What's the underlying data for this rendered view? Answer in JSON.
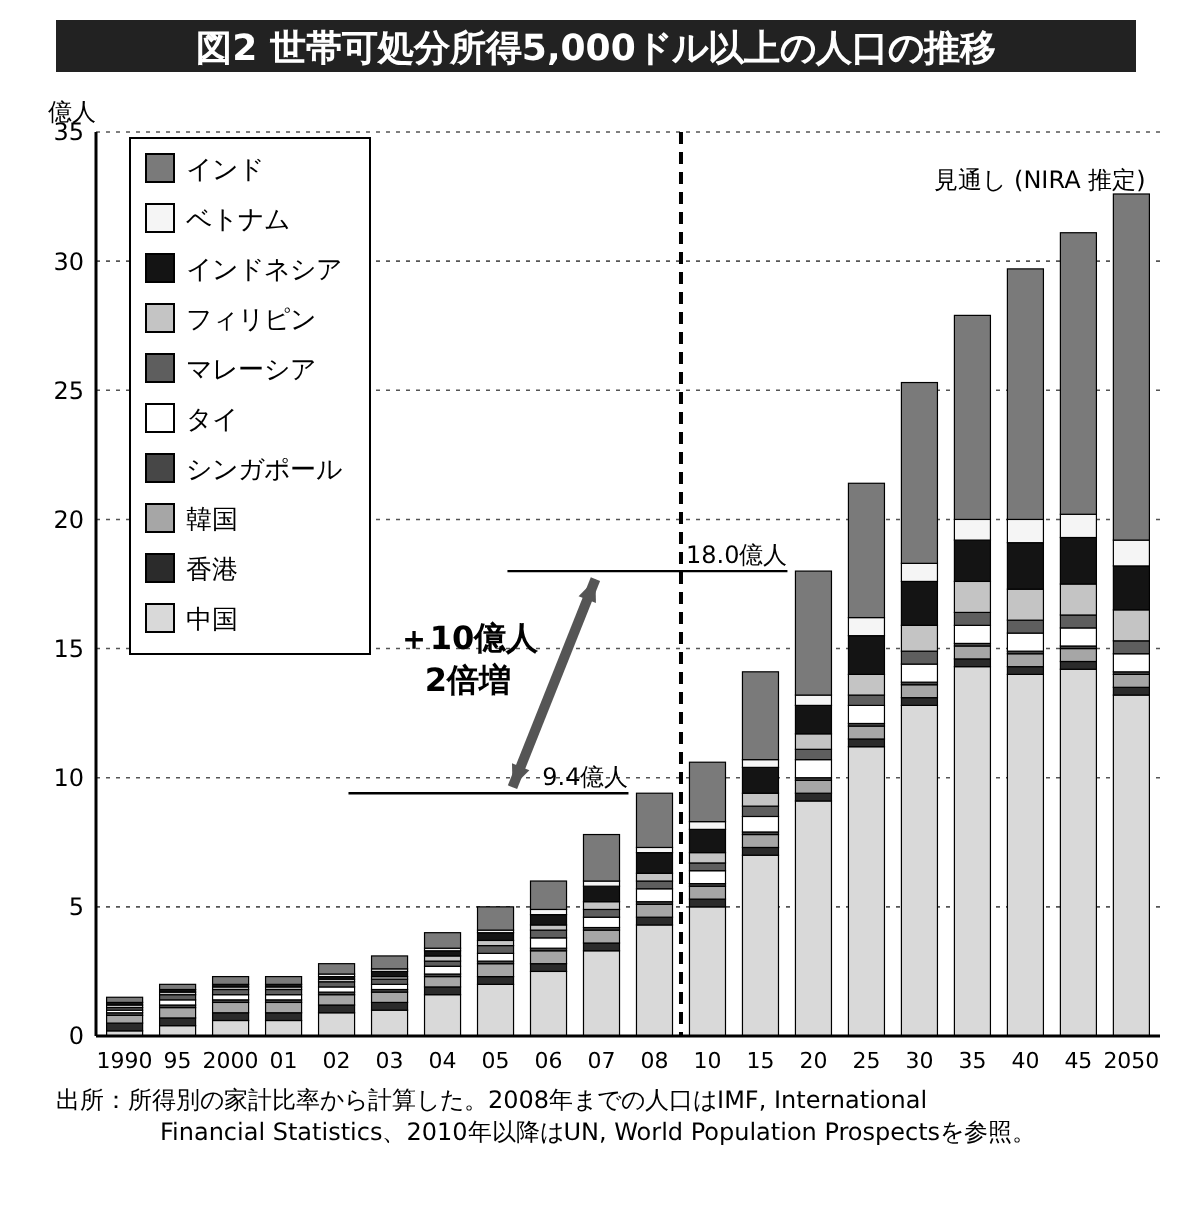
{
  "chart_data": {
    "type": "bar",
    "stacked": true,
    "title": "図2 世帯可処分所得5,000ドル以上の人口の推移",
    "ylabel": "億人",
    "categories": [
      "1990",
      "95",
      "2000",
      "01",
      "02",
      "03",
      "04",
      "05",
      "06",
      "07",
      "08",
      "10",
      "15",
      "20",
      "25",
      "30",
      "35",
      "40",
      "45",
      "2050"
    ],
    "series": [
      {
        "name": "中国",
        "color": "#d9d9d9",
        "values": [
          0.2,
          0.4,
          0.6,
          0.6,
          0.9,
          1.0,
          1.6,
          2.0,
          2.5,
          3.3,
          4.3,
          5.0,
          7.0,
          9.1,
          11.2,
          12.8,
          14.3,
          14.0,
          14.2,
          13.2
        ]
      },
      {
        "name": "香港",
        "color": "#2b2b2b",
        "values": [
          0.3,
          0.3,
          0.3,
          0.3,
          0.3,
          0.3,
          0.3,
          0.3,
          0.3,
          0.3,
          0.3,
          0.3,
          0.3,
          0.3,
          0.3,
          0.3,
          0.3,
          0.3,
          0.3,
          0.3
        ]
      },
      {
        "name": "韓国",
        "color": "#a6a6a6",
        "values": [
          0.3,
          0.4,
          0.4,
          0.4,
          0.4,
          0.4,
          0.4,
          0.5,
          0.5,
          0.5,
          0.5,
          0.5,
          0.5,
          0.5,
          0.5,
          0.5,
          0.5,
          0.5,
          0.5,
          0.5
        ]
      },
      {
        "name": "シンガポール",
        "color": "#474747",
        "values": [
          0.1,
          0.1,
          0.1,
          0.1,
          0.1,
          0.1,
          0.1,
          0.1,
          0.1,
          0.1,
          0.1,
          0.1,
          0.1,
          0.1,
          0.1,
          0.1,
          0.1,
          0.1,
          0.1,
          0.1
        ]
      },
      {
        "name": "タイ",
        "color": "#ffffff",
        "values": [
          0.1,
          0.2,
          0.2,
          0.2,
          0.2,
          0.2,
          0.3,
          0.3,
          0.4,
          0.4,
          0.5,
          0.5,
          0.6,
          0.7,
          0.7,
          0.7,
          0.7,
          0.7,
          0.7,
          0.7
        ]
      },
      {
        "name": "マレーシア",
        "color": "#5e5e5e",
        "values": [
          0.1,
          0.2,
          0.2,
          0.2,
          0.2,
          0.2,
          0.2,
          0.3,
          0.3,
          0.3,
          0.3,
          0.3,
          0.4,
          0.4,
          0.4,
          0.5,
          0.5,
          0.5,
          0.5,
          0.5
        ]
      },
      {
        "name": "フィリピン",
        "color": "#c4c4c4",
        "values": [
          0.1,
          0.1,
          0.1,
          0.1,
          0.1,
          0.1,
          0.2,
          0.2,
          0.2,
          0.3,
          0.3,
          0.4,
          0.5,
          0.6,
          0.8,
          1.0,
          1.2,
          1.2,
          1.2,
          1.2
        ]
      },
      {
        "name": "インドネシア",
        "color": "#141414",
        "values": [
          0.1,
          0.1,
          0.1,
          0.1,
          0.1,
          0.2,
          0.2,
          0.3,
          0.4,
          0.6,
          0.8,
          0.9,
          1.0,
          1.1,
          1.5,
          1.7,
          1.6,
          1.8,
          1.8,
          1.7
        ]
      },
      {
        "name": "ベトナム",
        "color": "#f5f5f5",
        "values": [
          0,
          0,
          0,
          0,
          0.1,
          0.1,
          0.1,
          0.1,
          0.2,
          0.2,
          0.2,
          0.3,
          0.3,
          0.4,
          0.7,
          0.7,
          0.8,
          0.9,
          0.9,
          1.0
        ]
      },
      {
        "name": "インド",
        "color": "#7a7a7a",
        "values": [
          0.2,
          0.2,
          0.3,
          0.3,
          0.4,
          0.5,
          0.6,
          0.9,
          1.1,
          1.8,
          2.1,
          2.3,
          3.4,
          4.8,
          5.2,
          7.0,
          7.9,
          9.7,
          10.9,
          13.4
        ]
      }
    ],
    "ylim": [
      0,
      35
    ],
    "yticks": [
      0,
      5,
      10,
      15,
      20,
      25,
      30,
      35
    ],
    "grid": "y",
    "legend": "top left",
    "ref_lines": [
      {
        "axis": "x",
        "value": "10",
        "line_style": "dashed",
        "color": "#000000"
      }
    ],
    "annotations": [
      {
        "text": "見通し (NIRA 推定)"
      },
      {
        "text": "18.0億人",
        "x": "20",
        "y": 18.0
      },
      {
        "text": "9.4億人",
        "x": "08",
        "y": 9.4
      },
      {
        "text": "＋10億人\n2倍増"
      },
      {
        "text": "出所：所得別の家計比率から計算した。2008年までの人口はIMF, International\nFinancial Statistics、2010年以降はUN, World Population Prospectsを参照。"
      }
    ]
  }
}
